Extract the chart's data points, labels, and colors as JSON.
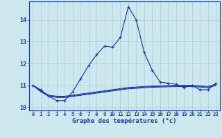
{
  "title": "Graphe des températures (°c)",
  "background_color": "#cce8ee",
  "grid_color": "#aaccd4",
  "line_color": "#1a3aaa",
  "x_labels": [
    "0",
    "1",
    "2",
    "3",
    "4",
    "5",
    "6",
    "7",
    "8",
    "9",
    "10",
    "11",
    "12",
    "13",
    "14",
    "15",
    "16",
    "17",
    "18",
    "19",
    "20",
    "21",
    "22",
    "23"
  ],
  "hours": [
    0,
    1,
    2,
    3,
    4,
    5,
    6,
    7,
    8,
    9,
    10,
    11,
    12,
    13,
    14,
    15,
    16,
    17,
    18,
    19,
    20,
    21,
    22,
    23
  ],
  "main_temps": [
    11.0,
    10.8,
    10.5,
    10.3,
    10.3,
    10.7,
    11.3,
    11.9,
    12.4,
    12.8,
    12.75,
    13.2,
    14.6,
    14.0,
    12.5,
    11.7,
    11.15,
    11.1,
    11.05,
    10.9,
    11.0,
    10.8,
    10.8,
    11.1
  ],
  "line2_temps": [
    11.0,
    10.75,
    10.55,
    10.5,
    10.5,
    10.55,
    10.6,
    10.65,
    10.7,
    10.75,
    10.8,
    10.85,
    10.9,
    10.92,
    10.95,
    10.97,
    10.98,
    10.99,
    11.0,
    11.0,
    11.0,
    10.98,
    10.95,
    11.05
  ],
  "line3_temps": [
    11.0,
    10.72,
    10.52,
    10.47,
    10.47,
    10.52,
    10.57,
    10.62,
    10.67,
    10.72,
    10.77,
    10.82,
    10.87,
    10.89,
    10.92,
    10.94,
    10.95,
    10.96,
    10.97,
    10.97,
    10.97,
    10.95,
    10.92,
    11.02
  ],
  "line4_temps": [
    11.0,
    10.7,
    10.5,
    10.44,
    10.44,
    10.49,
    10.54,
    10.59,
    10.64,
    10.69,
    10.74,
    10.79,
    10.84,
    10.86,
    10.89,
    10.91,
    10.92,
    10.93,
    10.94,
    10.94,
    10.94,
    10.92,
    10.89,
    10.99
  ],
  "ylim_min": 9.85,
  "ylim_max": 14.85,
  "yticks": [
    10,
    11,
    12,
    13,
    14
  ]
}
